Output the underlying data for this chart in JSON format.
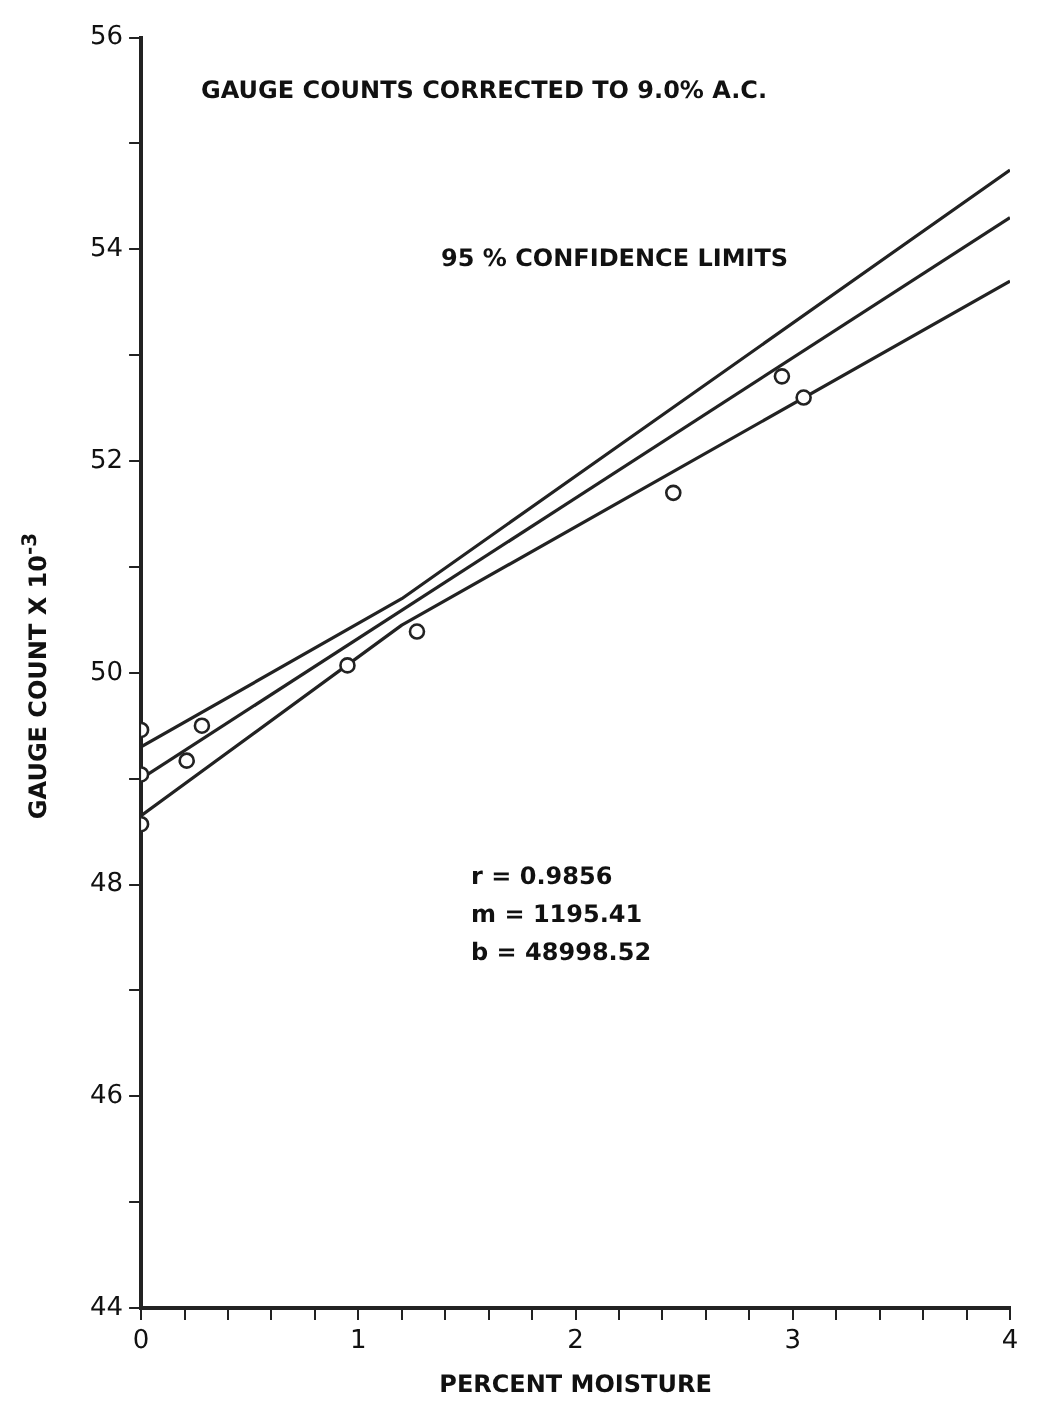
{
  "chart_data": {
    "type": "scatter",
    "title": "GAUGE COUNTS CORRECTED TO 9.0% A.C.",
    "xlabel": "PERCENT MOISTURE",
    "ylabel": "GAUGE COUNT X 10$^{-3}$",
    "x": [
      0,
      0,
      0,
      0.21,
      0.28,
      0.95,
      1.27,
      2.45,
      2.95,
      3.05
    ],
    "series": [
      {
        "color": "#222222",
        "marker": "circle",
        "values": [
          49.46,
          49.04,
          48.57,
          49.17,
          49.5,
          50.07,
          50.39,
          51.7,
          52.8,
          52.6
        ]
      },
      {
        "type": "line",
        "color": "#222222",
        "marker": "none",
        "x": [
          0,
          1.2,
          4
        ],
        "values": [
          49.3,
          50.7,
          54.75
        ]
      },
      {
        "type": "line",
        "color": "#222222",
        "marker": "none",
        "x": [
          0,
          4
        ],
        "values": [
          49.0,
          54.3
        ]
      },
      {
        "type": "line",
        "color": "#222222",
        "marker": "none",
        "x": [
          0,
          1.2,
          4
        ],
        "values": [
          48.65,
          50.45,
          53.7
        ]
      }
    ],
    "xlim": [
      0,
      4
    ],
    "ylim": [
      44,
      56
    ],
    "xticks": [
      0,
      {
        "value": 0.2,
        "label": null
      },
      {
        "value": 0.4,
        "label": null
      },
      {
        "value": 0.6,
        "label": null
      },
      {
        "value": 0.8,
        "label": null
      },
      1,
      {
        "value": 1.2,
        "label": null
      },
      {
        "value": 1.4,
        "label": null
      },
      {
        "value": 1.6,
        "label": null
      },
      {
        "value": 1.8,
        "label": null
      },
      2,
      {
        "value": 2.2,
        "label": null
      },
      {
        "value": 2.4,
        "label": null
      },
      {
        "value": 2.6,
        "label": null
      },
      {
        "value": 2.8,
        "label": null
      },
      3,
      {
        "value": 3.2,
        "label": null
      },
      {
        "value": 3.4,
        "label": null
      },
      {
        "value": 3.6,
        "label": null
      },
      {
        "value": 3.8,
        "label": null
      },
      4
    ],
    "yticks": [
      44,
      {
        "value": 45,
        "label": null
      },
      46,
      {
        "value": 47,
        "label": null
      },
      48,
      {
        "value": 49,
        "label": null
      },
      50,
      {
        "value": 51,
        "label": null
      },
      52,
      {
        "value": 53,
        "label": null
      },
      54,
      {
        "value": 55,
        "label": null
      },
      56
    ],
    "grid": false,
    "legend": false,
    "annotations": [
      "95 % CONFIDENCE LIMITS",
      "r = 0.9856",
      "m = 1195.41",
      "b = 48998.52"
    ]
  }
}
